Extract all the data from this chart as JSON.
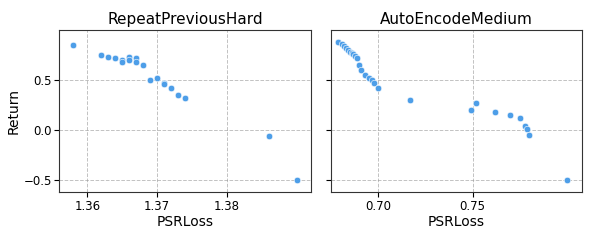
{
  "plot1": {
    "title": "RepeatPreviousHard",
    "xlabel": "PSRLoss",
    "ylabel": "Return",
    "xlim": [
      1.356,
      1.392
    ],
    "ylim": [
      -0.62,
      1.0
    ],
    "xticks": [
      1.36,
      1.37,
      1.38
    ],
    "yticks": [
      -0.5,
      0.0,
      0.5
    ],
    "x": [
      1.358,
      1.362,
      1.363,
      1.364,
      1.365,
      1.365,
      1.366,
      1.366,
      1.367,
      1.367,
      1.368,
      1.369,
      1.37,
      1.371,
      1.371,
      1.372,
      1.373,
      1.374,
      1.386,
      1.39
    ],
    "y": [
      0.85,
      0.75,
      0.73,
      0.72,
      0.7,
      0.68,
      0.73,
      0.7,
      0.72,
      0.68,
      0.65,
      0.5,
      0.52,
      0.47,
      0.46,
      0.42,
      0.35,
      0.32,
      -0.06,
      -0.5
    ]
  },
  "plot2": {
    "title": "AutoEncodeMedium",
    "xlabel": "PSRLoss",
    "xlim": [
      0.675,
      0.808
    ],
    "ylim": [
      -0.62,
      1.0
    ],
    "xticks": [
      0.7,
      0.75
    ],
    "yticks": [
      -0.5,
      0.0,
      0.5
    ],
    "x": [
      0.679,
      0.681,
      0.682,
      0.683,
      0.684,
      0.685,
      0.686,
      0.687,
      0.688,
      0.689,
      0.69,
      0.691,
      0.693,
      0.695,
      0.697,
      0.698,
      0.7,
      0.717,
      0.749,
      0.752,
      0.762,
      0.77,
      0.775,
      0.778,
      0.779,
      0.78,
      0.8
    ],
    "y": [
      0.88,
      0.86,
      0.84,
      0.82,
      0.8,
      0.78,
      0.77,
      0.76,
      0.74,
      0.72,
      0.65,
      0.6,
      0.55,
      0.52,
      0.5,
      0.47,
      0.42,
      0.3,
      0.2,
      0.27,
      0.18,
      0.15,
      0.12,
      0.04,
      0.01,
      -0.05,
      -0.5
    ]
  },
  "marker_color": "#4D9EE8",
  "marker_edge_color": "#FFFFFF",
  "marker_size": 22,
  "title_fontsize": 11,
  "label_fontsize": 10,
  "tick_fontsize": 8.5,
  "grid_color": "#999999",
  "bg_color": "#FFFFFF"
}
